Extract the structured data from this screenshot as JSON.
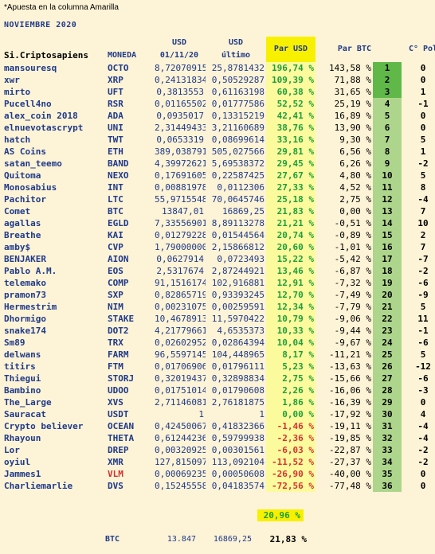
{
  "note": "*Apuesta en la columna Amarilla",
  "month": "NOVIEMBRE 2020",
  "headers": {
    "name": "Si.Criptosapiens",
    "coin": "MONEDA",
    "usd1_a": "USD",
    "usd1_b": "01/11/20",
    "usd2_a": "USD",
    "usd2_b": "último",
    "par_usd": "Par USD",
    "par_btc": "Par BTC",
    "pol": "C° Pol"
  },
  "rows": [
    {
      "name": "mansouresq",
      "coin": "OCTO",
      "usd1": "8,72070915",
      "usd2": "25,8781432",
      "par": "196,74 %",
      "btc": "143,58 %",
      "rank": "1",
      "pol": "0"
    },
    {
      "name": "xwr",
      "coin": "XRP",
      "usd1": "0,24131834",
      "usd2": "0,50529287",
      "par": "109,39 %",
      "btc": "71,88 %",
      "rank": "2",
      "pol": "0"
    },
    {
      "name": "mirto",
      "coin": "UFT",
      "usd1": "0,3813553",
      "usd2": "0,61163198",
      "par": "60,38 %",
      "btc": "31,65 %",
      "rank": "3",
      "pol": "1"
    },
    {
      "name": "Pucell4no",
      "coin": "RSR",
      "usd1": "0,01165502",
      "usd2": "0,01777586",
      "par": "52,52 %",
      "btc": "25,19 %",
      "rank": "4",
      "pol": "-1"
    },
    {
      "name": "alex_coin 2018",
      "coin": "ADA",
      "usd1": "0,0935017",
      "usd2": "0,13315219",
      "par": "42,41 %",
      "btc": "16,89 %",
      "rank": "5",
      "pol": "0"
    },
    {
      "name": "elnuevotascrypt",
      "coin": "UNI",
      "usd1": "2,31449433",
      "usd2": "3,21160689",
      "par": "38,76 %",
      "btc": "13,90 %",
      "rank": "6",
      "pol": "0"
    },
    {
      "name": "hatch",
      "coin": "TWT",
      "usd1": "0,0653319",
      "usd2": "0,08699614",
      "par": "33,16 %",
      "btc": "9,30 %",
      "rank": "7",
      "pol": "5"
    },
    {
      "name": "AS Coins",
      "coin": "ETH",
      "usd1": "389,038791",
      "usd2": "505,027566",
      "par": "29,81 %",
      "btc": "6,56 %",
      "rank": "8",
      "pol": "1"
    },
    {
      "name": "satan_teemo",
      "coin": "BAND",
      "usd1": "4,39972621",
      "usd2": "5,69538372",
      "par": "29,45 %",
      "btc": "6,26 %",
      "rank": "9",
      "pol": "-2"
    },
    {
      "name": "Quitoma",
      "coin": "NEXO",
      "usd1": "0,17691605",
      "usd2": "0,22587425",
      "par": "27,67 %",
      "btc": "4,80 %",
      "rank": "10",
      "pol": "5"
    },
    {
      "name": "Monosabius",
      "coin": "INT",
      "usd1": "0,00881978",
      "usd2": "0,0112306",
      "par": "27,33 %",
      "btc": "4,52 %",
      "rank": "11",
      "pol": "8"
    },
    {
      "name": "Pachitor",
      "coin": "LTC",
      "usd1": "55,9715548",
      "usd2": "70,0645746",
      "par": "25,18 %",
      "btc": "2,75 %",
      "rank": "12",
      "pol": "-4"
    },
    {
      "name": "Comet",
      "coin": "BTC",
      "usd1": "13847,01",
      "usd2": "16869,25",
      "par": "21,83 %",
      "btc": "0,00 %",
      "rank": "13",
      "pol": "7"
    },
    {
      "name": "agallas",
      "coin": "EGLD",
      "usd1": "7,33556901",
      "usd2": "8,89113278",
      "par": "21,21 %",
      "btc": "-0,51 %",
      "rank": "14",
      "pol": "10"
    },
    {
      "name": "Breathe",
      "coin": "KAI",
      "usd1": "0,01279228",
      "usd2": "0,01544564",
      "par": "20,74 %",
      "btc": "-0,89 %",
      "rank": "15",
      "pol": "2"
    },
    {
      "name": "amby$",
      "coin": "CVP",
      "usd1": "1,79000000",
      "usd2": "2,15866812",
      "par": "20,60 %",
      "btc": "-1,01 %",
      "rank": "16",
      "pol": "7"
    },
    {
      "name": "BENJAKER",
      "coin": "AION",
      "usd1": "0,0627914",
      "usd2": "0,0723493",
      "par": "15,22 %",
      "btc": "-5,42 %",
      "rank": "17",
      "pol": "-7"
    },
    {
      "name": "Pablo A.M.",
      "coin": "EOS",
      "usd1": "2,5317674",
      "usd2": "2,87244921",
      "par": "13,46 %",
      "btc": "-6,87 %",
      "rank": "18",
      "pol": "-2"
    },
    {
      "name": "telemako",
      "coin": "COMP",
      "usd1": "91,1516174",
      "usd2": "102,916881",
      "par": "12,91 %",
      "btc": "-7,32 %",
      "rank": "19",
      "pol": "-6"
    },
    {
      "name": "pramon73",
      "coin": "SXP",
      "usd1": "0,82865719",
      "usd2": "0,93393245",
      "par": "12,70 %",
      "btc": "-7,49 %",
      "rank": "20",
      "pol": "-9"
    },
    {
      "name": "Hermestrim",
      "coin": "NIM",
      "usd1": "0,00231075",
      "usd2": "0,00259591",
      "par": "12,34 %",
      "btc": "-7,79 %",
      "rank": "21",
      "pol": "5"
    },
    {
      "name": "Dhormigo",
      "coin": "STAKE",
      "usd1": "10,4678913",
      "usd2": "11,5970422",
      "par": "10,79 %",
      "btc": "-9,06 %",
      "rank": "22",
      "pol": "11"
    },
    {
      "name": "snake174",
      "coin": "DOT2",
      "usd1": "4,21779661",
      "usd2": "4,6535373",
      "par": "10,33 %",
      "btc": "-9,44 %",
      "rank": "23",
      "pol": "-1"
    },
    {
      "name": "Sm89",
      "coin": "TRX",
      "usd1": "0,02602952",
      "usd2": "0,02864394",
      "par": "10,04 %",
      "btc": "-9,67 %",
      "rank": "24",
      "pol": "-6"
    },
    {
      "name": "delwans",
      "coin": "FARM",
      "usd1": "96,5597145",
      "usd2": "104,448965",
      "par": "8,17 %",
      "btc": "-11,21 %",
      "rank": "25",
      "pol": "5"
    },
    {
      "name": "titirs",
      "coin": "FTM",
      "usd1": "0,01706906",
      "usd2": "0,01796111",
      "par": "5,23 %",
      "btc": "-13,63 %",
      "rank": "26",
      "pol": "-12"
    },
    {
      "name": "Thiegui",
      "coin": "STORJ",
      "usd1": "0,32019437",
      "usd2": "0,32898834",
      "par": "2,75 %",
      "btc": "-15,66 %",
      "rank": "27",
      "pol": "-6"
    },
    {
      "name": "Bambino",
      "coin": "UDOO",
      "usd1": "0,01751014",
      "usd2": "0,01790608",
      "par": "2,26 %",
      "btc": "-16,06 %",
      "rank": "28",
      "pol": "-3"
    },
    {
      "name": "The_Large",
      "coin": "XVS",
      "usd1": "2,71146081",
      "usd2": "2,76181875",
      "par": "1,86 %",
      "btc": "-16,39 %",
      "rank": "29",
      "pol": "0"
    },
    {
      "name": "Sauracat",
      "coin": "USDT",
      "usd1": "1",
      "usd2": "1",
      "par": "0,00 %",
      "btc": "-17,92 %",
      "rank": "30",
      "pol": "4"
    },
    {
      "name": "Crypto believer",
      "coin": "OCEAN",
      "usd1": "0,42450067",
      "usd2": "0,41832366",
      "par": "-1,46 %",
      "btc": "-19,11 %",
      "rank": "31",
      "pol": "-4"
    },
    {
      "name": "Rhayoun",
      "coin": "THETA",
      "usd1": "0,61244236",
      "usd2": "0,59799938",
      "par": "-2,36 %",
      "btc": "-19,85 %",
      "rank": "32",
      "pol": "-4"
    },
    {
      "name": "Lor",
      "coin": "DREP",
      "usd1": "0,00320925",
      "usd2": "0,00301561",
      "par": "-6,03 %",
      "btc": "-22,87 %",
      "rank": "33",
      "pol": "-2"
    },
    {
      "name": "oyiul",
      "coin": "XMR",
      "usd1": "127,815097",
      "usd2": "113,092104",
      "par": "-11,52 %",
      "btc": "-27,37 %",
      "rank": "34",
      "pol": "-2"
    },
    {
      "name": "Jammes1",
      "coin": "VLM",
      "usd1": "0,00069235",
      "usd2": "0,00050608",
      "par": "-26,90 %",
      "btc": "-40,00 %",
      "rank": "35",
      "pol": "0"
    },
    {
      "name": "Charliemarlie",
      "coin": "DVS",
      "usd1": "0,15245558",
      "usd2": "0,04183574",
      "par": "-72,56 %",
      "btc": "-77,48 %",
      "rank": "36",
      "pol": "0"
    }
  ],
  "total_par": "20,96 %",
  "btc_row": {
    "label": "BTC",
    "usd1": "13.847",
    "usd2": "16869,25",
    "par": "21,83 %"
  },
  "colors": {
    "background": "#fdf3d6",
    "name_blue": "#1f3a8a",
    "par_green": "#1e9e3a",
    "par_neg_red": "#d93030",
    "yellow_header": "#f7f000",
    "par_col_bg": "#fbfb9e",
    "rank_green": "#aed58c",
    "rank_top_green": "#5fb848",
    "special_coin_red": "#d32f2f"
  }
}
